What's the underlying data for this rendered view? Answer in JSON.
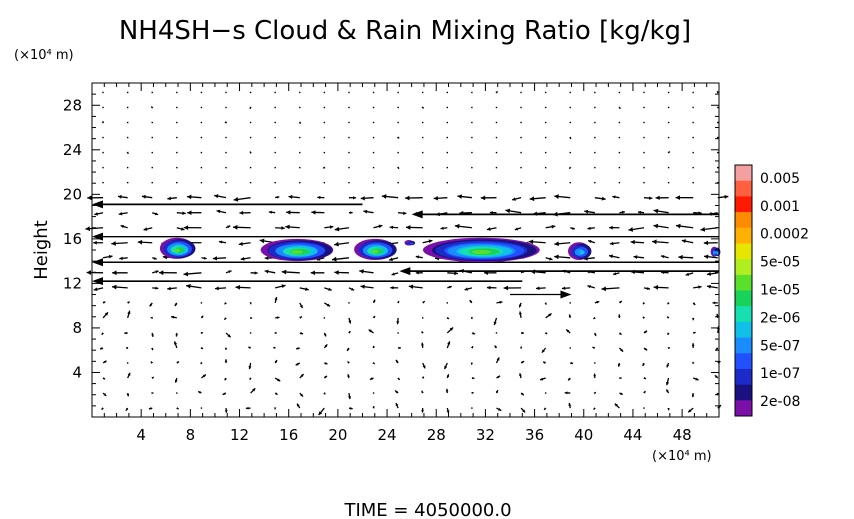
{
  "chart_data": {
    "type": "contour-vector",
    "title": "NH4SH−s Cloud & Rain Mixing Ratio [kg/kg]",
    "ylabel": "Height",
    "y_unit": "(×10⁴ m)",
    "x_unit": "(×10⁴ m)",
    "footer": "TIME  =  4050000.0",
    "xlim": [
      0,
      51
    ],
    "ylim": [
      0,
      30
    ],
    "xticks": [
      "4",
      "8",
      "12",
      "16",
      "20",
      "24",
      "28",
      "32",
      "36",
      "40",
      "44",
      "48"
    ],
    "yticks": [
      "4",
      "8",
      "12",
      "16",
      "20",
      "24",
      "28"
    ],
    "xtick_values": [
      4,
      8,
      12,
      16,
      20,
      24,
      28,
      32,
      36,
      40,
      44,
      48
    ],
    "ytick_values": [
      4,
      8,
      12,
      16,
      20,
      24,
      28
    ],
    "legend": {
      "labels": [
        "0.005",
        "0.001",
        "0.0002",
        "5e-05",
        "1e-05",
        "2e-06",
        "5e-07",
        "1e-07",
        "2e-08"
      ],
      "colors": [
        "#f4a0a0",
        "#ff6040",
        "#ff1a00",
        "#ff8c00",
        "#ffb000",
        "#e6e600",
        "#b0ee20",
        "#5ae02a",
        "#18d25a",
        "#16e0b0",
        "#10c0e8",
        "#1a8cff",
        "#2050ff",
        "#1c2ac8",
        "#1a1080",
        "#7a10a8"
      ]
    },
    "clouds": [
      {
        "x": [
          5.6,
          8.4
        ],
        "y": [
          14.2,
          16.1
        ],
        "peak": "1e-05"
      },
      {
        "x": [
          13.8,
          19.7
        ],
        "y": [
          14.0,
          16.0
        ],
        "peak": "1e-05"
      },
      {
        "x": [
          21.4,
          24.8
        ],
        "y": [
          14.1,
          16.0
        ],
        "peak": "1e-05"
      },
      {
        "x": [
          25.5,
          26.2
        ],
        "y": [
          15.4,
          15.9
        ],
        "peak": "1e-07"
      },
      {
        "x": [
          27.0,
          36.5
        ],
        "y": [
          13.9,
          16.1
        ],
        "peak": "1e-05"
      },
      {
        "x": [
          38.8,
          40.6
        ],
        "y": [
          14.1,
          15.7
        ],
        "peak": "5e-07"
      },
      {
        "x": [
          50.4,
          51
        ],
        "y": [
          14.4,
          15.3
        ],
        "peak": "5e-07"
      }
    ],
    "wind_jets": [
      {
        "y": 19.1,
        "x": [
          0,
          22
        ],
        "direction": "west",
        "strength": "strong"
      },
      {
        "y": 18.2,
        "x": [
          26,
          51
        ],
        "direction": "west",
        "strength": "strong"
      },
      {
        "y": 16.2,
        "x": [
          0,
          51
        ],
        "direction": "west",
        "strength": "moderate"
      },
      {
        "y": 13.9,
        "x": [
          0,
          51
        ],
        "direction": "west",
        "strength": "moderate"
      },
      {
        "y": 13.1,
        "x": [
          25,
          51
        ],
        "direction": "west",
        "strength": "strong"
      },
      {
        "y": 12.2,
        "x": [
          0,
          35
        ],
        "direction": "west",
        "strength": "strong"
      },
      {
        "y": 11.0,
        "x": [
          34,
          39
        ],
        "direction": "east",
        "strength": "weak"
      }
    ]
  }
}
